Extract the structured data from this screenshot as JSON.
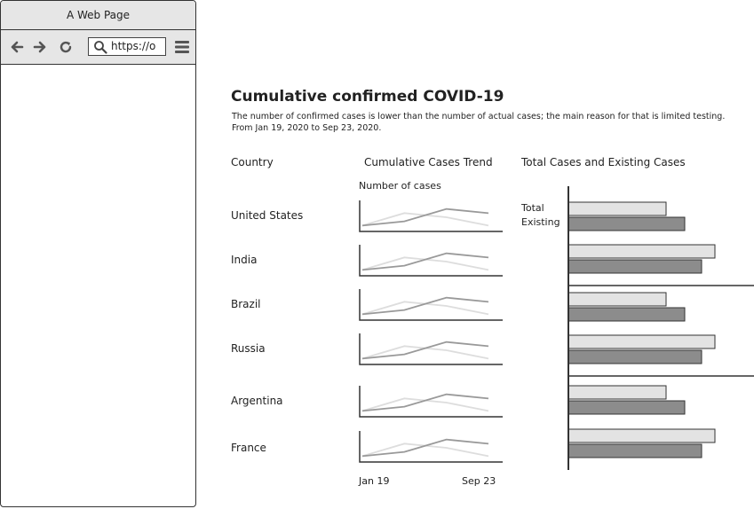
{
  "browser": {
    "title": "A Web Page",
    "url": "https://o"
  },
  "page": {
    "title": "Cumulative confirmed COVID-19",
    "subtitle_line1": "The number of confirmed cases is lower than the number of actual cases; the main reason for that is limited testing.",
    "subtitle_line2": "From Jan 19, 2020 to Sep 23, 2020."
  },
  "table": {
    "headers": {
      "country": "Country",
      "trend": "Cumulative Cases Trend",
      "bars": "Total Cases and Existing Cases"
    },
    "trend_axis_title": "Number of cases",
    "x_start": "Jan 19",
    "x_end": "Sep 23",
    "countries": [
      "United States",
      "India",
      "Brazil",
      "Russia",
      "Argentina",
      "France"
    ]
  },
  "colors": {
    "total": "#e3e3e3",
    "existing": "#8c8c8c",
    "spark_light": "#dddddd",
    "spark_dark": "#999999"
  },
  "chart_data": [
    {
      "type": "line",
      "title": "Cumulative Cases Trend",
      "ylabel": "Number of cases",
      "x": [
        "Jan 19",
        "",
        "",
        "Sep 23"
      ],
      "series": [
        {
          "values": [
            1,
            4,
            3,
            1
          ]
        },
        {
          "values": [
            1,
            2,
            5,
            4
          ]
        }
      ]
    },
    {
      "type": "bar",
      "title": "Total Cases and Existing Cases",
      "categories": [
        "United States",
        "India",
        "Brazil",
        "Russia",
        "Argentina",
        "France"
      ],
      "series": [
        {
          "name": "Total",
          "values": [
            110,
            165,
            110,
            165,
            110,
            165
          ]
        },
        {
          "name": "Existing",
          "values": [
            131,
            150,
            131,
            150,
            131,
            150
          ]
        }
      ],
      "xlim": [
        0,
        210
      ]
    }
  ]
}
